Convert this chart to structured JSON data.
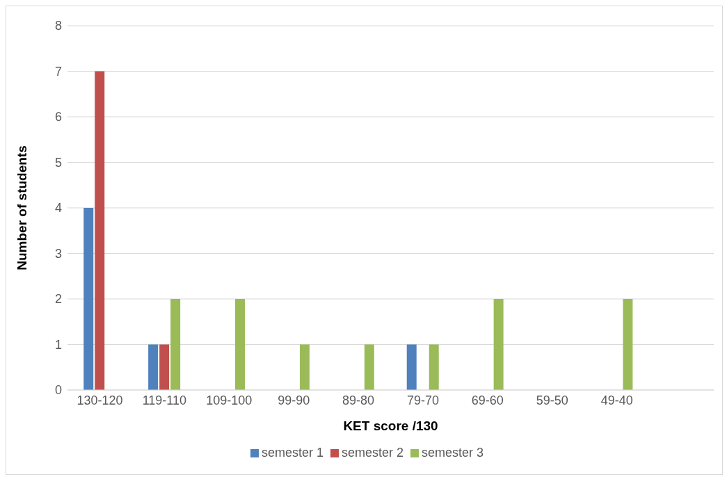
{
  "chart_data": {
    "type": "bar",
    "xlabel": "KET score /130",
    "ylabel": "Number of students",
    "categories": [
      "130-120",
      "119-110",
      "109-100",
      "99-90",
      "89-80",
      "79-70",
      "69-60",
      "59-50",
      "49-40",
      null
    ],
    "series": [
      {
        "name": "semester 1",
        "color": "#4f81bd",
        "values": [
          4,
          1,
          0,
          0,
          0,
          1,
          0,
          0,
          0,
          null
        ]
      },
      {
        "name": "semester 2",
        "color": "#c0504d",
        "values": [
          7,
          1,
          0,
          0,
          0,
          0,
          0,
          0,
          0,
          null
        ]
      },
      {
        "name": "semester 3",
        "color": "#9bbb59",
        "values": [
          0,
          2,
          2,
          1,
          1,
          1,
          2,
          0,
          2,
          null
        ]
      }
    ],
    "ylim": [
      0,
      8
    ],
    "yticks": [
      0,
      1,
      2,
      3,
      4,
      5,
      6,
      7,
      8
    ],
    "grid": "y",
    "legend": "bottom"
  }
}
